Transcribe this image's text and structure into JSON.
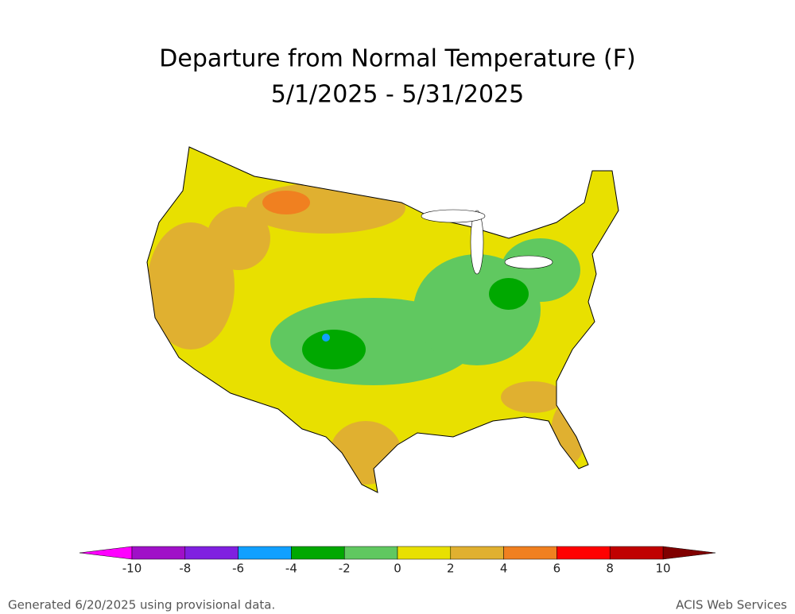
{
  "title": "Departure from Normal Temperature (F)",
  "subtitle": "5/1/2025 - 5/31/2025",
  "legend": {
    "ticks": [
      -10,
      -8,
      -6,
      -4,
      -2,
      0,
      2,
      4,
      6,
      8,
      10
    ],
    "colors": [
      "#a010c8",
      "#8020e0",
      "#10a0ff",
      "#00a800",
      "#60c860",
      "#e8e000",
      "#e0b030",
      "#f08020",
      "#ff0000",
      "#c00000"
    ],
    "under_color": "#ff00ff",
    "over_color": "#800000"
  },
  "footer": {
    "left": "Generated 6/20/2025 using provisional data.",
    "right": "ACIS Web Services"
  }
}
